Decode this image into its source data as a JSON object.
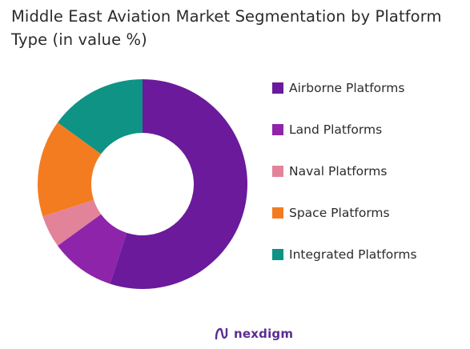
{
  "chart_data": {
    "type": "pie",
    "title": "Middle East Aviation Market Segmentation by Platform Type (in value %)",
    "donut": true,
    "legend_position": "right",
    "slices": [
      {
        "label": "Airborne Platforms",
        "value": 55,
        "color": "#6a1a9b"
      },
      {
        "label": "Land Platforms",
        "value": 10,
        "color": "#8e24aa"
      },
      {
        "label": "Naval Platforms",
        "value": 5,
        "color": "#e2839a"
      },
      {
        "label": "Space Platforms",
        "value": 15,
        "color": "#f47c20"
      },
      {
        "label": "Integrated Platforms",
        "value": 15,
        "color": "#0e9384"
      }
    ]
  },
  "brand": {
    "name": "nexdigm",
    "color": "#5a2d91"
  }
}
